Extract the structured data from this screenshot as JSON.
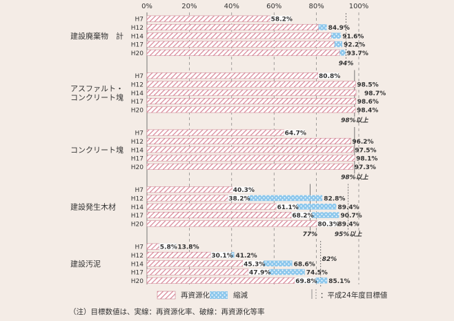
{
  "chart_data": {
    "type": "bar",
    "x_ticks": [
      "0%",
      "20%",
      "40%",
      "60%",
      "80%",
      "100%"
    ],
    "xlim": [
      0,
      100
    ],
    "legend": {
      "recycle": "再資源化",
      "reduce": "縮減",
      "target_note": "：平成24年度目標値"
    },
    "footnote": "（注）目標数値は、実線：再資源化率、破線：再資源化等率",
    "colors": {
      "recycle": "#d98a9a",
      "reduce": "#7ec0e8",
      "background": "#f4ece6"
    },
    "groups": [
      {
        "name": "建設廃棄物　計",
        "rows": [
          {
            "year": "H7",
            "recycle": 58.2,
            "total": null,
            "recycle_label": "58.2%",
            "total_label": ""
          },
          {
            "year": "H12",
            "recycle": 81.0,
            "total": 84.9,
            "recycle_label": "",
            "total_label": "84.9%"
          },
          {
            "year": "H14",
            "recycle": 87.0,
            "total": 91.6,
            "recycle_label": "",
            "total_label": "91.6%"
          },
          {
            "year": "H17",
            "recycle": 88.5,
            "total": 92.2,
            "recycle_label": "",
            "total_label": "92.2%"
          },
          {
            "year": "H20",
            "recycle": 91.0,
            "total": 93.7,
            "recycle_label": "",
            "total_label": "93.7%"
          }
        ],
        "targets": [
          {
            "value": 94,
            "style": "dashed",
            "label": "94%"
          }
        ]
      },
      {
        "name": "アスファルト・\nコンクリート塊",
        "rows": [
          {
            "year": "H7",
            "recycle": 80.8,
            "total": null,
            "recycle_label": "80.8%",
            "total_label": ""
          },
          {
            "year": "H12",
            "recycle": 98.5,
            "total": null,
            "recycle_label": "",
            "total_label": "98.5%"
          },
          {
            "year": "H14",
            "recycle": 98.7,
            "total": null,
            "recycle_label": "",
            "total_label": "98.7%"
          },
          {
            "year": "H17",
            "recycle": 98.6,
            "total": null,
            "recycle_label": "",
            "total_label": "98.6%"
          },
          {
            "year": "H20",
            "recycle": 98.4,
            "total": null,
            "recycle_label": "",
            "total_label": "98.4%"
          }
        ],
        "targets": [
          {
            "value": 98,
            "style": "solid",
            "label": "98%以上"
          }
        ]
      },
      {
        "name": "コンクリート塊",
        "rows": [
          {
            "year": "H7",
            "recycle": 64.7,
            "total": null,
            "recycle_label": "64.7%",
            "total_label": ""
          },
          {
            "year": "H12",
            "recycle": 96.2,
            "total": null,
            "recycle_label": "",
            "total_label": "96.2%"
          },
          {
            "year": "H14",
            "recycle": 97.5,
            "total": null,
            "recycle_label": "",
            "total_label": "97.5%"
          },
          {
            "year": "H17",
            "recycle": 98.1,
            "total": null,
            "recycle_label": "",
            "total_label": "98.1%"
          },
          {
            "year": "H20",
            "recycle": 97.3,
            "total": null,
            "recycle_label": "",
            "total_label": "97.3%"
          }
        ],
        "targets": [
          {
            "value": 98,
            "style": "solid",
            "label": "98%以上"
          }
        ]
      },
      {
        "name": "建設発生木材",
        "rows": [
          {
            "year": "H7",
            "recycle": 40.3,
            "total": null,
            "recycle_label": "40.3%",
            "total_label": ""
          },
          {
            "year": "H12",
            "recycle": 38.2,
            "total": 82.8,
            "recycle_label": "38.2%",
            "total_label": "82.8%"
          },
          {
            "year": "H14",
            "recycle": 61.1,
            "total": 89.4,
            "recycle_label": "61.1%",
            "total_label": "89.4%"
          },
          {
            "year": "H17",
            "recycle": 68.2,
            "total": 90.7,
            "recycle_label": "68.2%",
            "total_label": "90.7%"
          },
          {
            "year": "H20",
            "recycle": 80.3,
            "total": 89.4,
            "recycle_label": "80.3%",
            "total_label": "89.4%"
          }
        ],
        "targets": [
          {
            "value": 77,
            "style": "solid",
            "label": "77%"
          },
          {
            "value": 95,
            "style": "dashed",
            "label": "95%以上"
          }
        ]
      },
      {
        "name": "建設汚泥",
        "rows": [
          {
            "year": "H7",
            "recycle": 5.8,
            "total": 13.8,
            "recycle_label": "5.8%",
            "total_label": "13.8%"
          },
          {
            "year": "H12",
            "recycle": 30.1,
            "total": 41.2,
            "recycle_label": "30.1%",
            "total_label": "41.2%"
          },
          {
            "year": "H14",
            "recycle": 45.3,
            "total": 68.6,
            "recycle_label": "45.3%",
            "total_label": "68.6%"
          },
          {
            "year": "H17",
            "recycle": 47.9,
            "total": 74.5,
            "recycle_label": "47.9%",
            "total_label": "74.5%"
          },
          {
            "year": "H20",
            "recycle": 69.8,
            "total": 85.1,
            "recycle_label": "69.8%",
            "total_label": "85.1%"
          }
        ],
        "targets": [
          {
            "value": 82,
            "style": "dashed",
            "label": "82%"
          }
        ]
      }
    ]
  }
}
